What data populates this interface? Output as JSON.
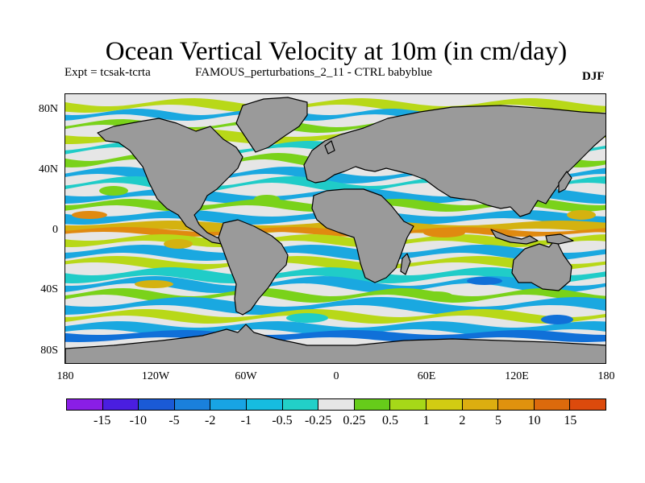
{
  "map": {
    "title": "Ocean Vertical Velocity at 10m (in cm/day)",
    "experiment": "Expt = tcsak-tcrta",
    "description": "FAMOUS_perturbations_2_11 - CTRL babyblue",
    "season": "DJF",
    "lat_ticks": [
      "80N",
      "40N",
      "0",
      "40S",
      "80S"
    ],
    "lon_ticks": [
      "180",
      "120W",
      "60W",
      "0",
      "60E",
      "120E",
      "180"
    ],
    "colors": {
      "land": "#9a9a9a",
      "near_zero": "#e6e6e6",
      "neg_weak": "#20ccc8",
      "neg_mid": "#1aa8e0",
      "neg_strong": "#1070d8",
      "pos_weak": "#7ad21a",
      "pos_mid": "#b8d818",
      "pos_strong": "#d4b210",
      "pos_vstrong": "#e08a10"
    }
  },
  "legend": {
    "colors": [
      "#8a1ee6",
      "#4a1ee0",
      "#1a5ad6",
      "#1a80dc",
      "#18a4e4",
      "#16bce0",
      "#22d0c8",
      "#e6e6e6",
      "#66cc1a",
      "#a6d818",
      "#d2cc12",
      "#dcae10",
      "#e0920e",
      "#dc6a0c",
      "#dc4a0c"
    ],
    "labels": [
      "-15",
      "-10",
      "-5",
      "-2",
      "-1",
      "-0.5",
      "-0.25",
      "0.25",
      "0.5",
      "1",
      "2",
      "5",
      "10",
      "15"
    ]
  }
}
